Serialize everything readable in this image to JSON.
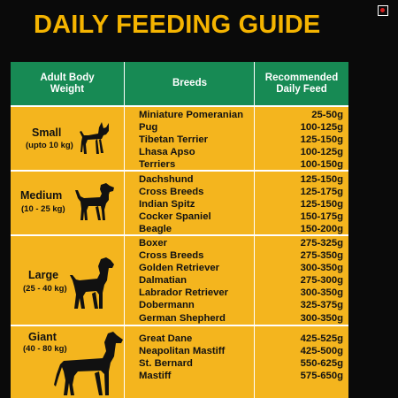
{
  "title": "DAILY FEEDING GUIDE",
  "colors": {
    "title": "#f5b400",
    "header_bg": "#178a54",
    "row_bg": "#f4b51e",
    "page_bg": "#0a0a0a"
  },
  "headers": {
    "size": "Adult Body\nWeight",
    "breeds": "Breeds",
    "feed": "Recommended\nDaily Feed"
  },
  "rows": [
    {
      "size": "Small",
      "range": "(upto 10 kg)",
      "icon": "small-dog-icon",
      "breeds": [
        "Miniature Pomeranian",
        "Pug",
        "Tibetan Terrier",
        "Lhasa Apso",
        "Terriers"
      ],
      "feeds": [
        "25-50g",
        "100-125g",
        "125-150g",
        "100-125g",
        "100-150g"
      ]
    },
    {
      "size": "Medium",
      "range": "(10 - 25 kg)",
      "icon": "medium-dog-icon",
      "breeds": [
        "Dachshund",
        "Cross Breeds",
        "Indian Spitz",
        "Cocker Spaniel",
        "Beagle"
      ],
      "feeds": [
        "125-150g",
        "125-175g",
        "125-150g",
        "150-175g",
        "150-200g"
      ]
    },
    {
      "size": "Large",
      "range": "(25 - 40 kg)",
      "icon": "large-dog-icon",
      "breeds": [
        "Boxer",
        "Cross Breeds",
        "Golden Retriever",
        "Dalmatian",
        "Labrador Retriever",
        "Dobermann",
        "German Shepherd"
      ],
      "feeds": [
        "275-325g",
        "275-350g",
        "300-350g",
        "275-300g",
        "300-350g",
        "325-375g",
        "300-350g"
      ]
    },
    {
      "size": "Giant",
      "range": "(40 - 80 kg)",
      "icon": "giant-dog-icon",
      "breeds": [
        "Great Dane",
        "Neapolitan Mastiff",
        "St. Bernard",
        "Mastiff"
      ],
      "feeds": [
        "425-525g",
        "425-500g",
        "550-625g",
        "575-650g"
      ]
    }
  ]
}
